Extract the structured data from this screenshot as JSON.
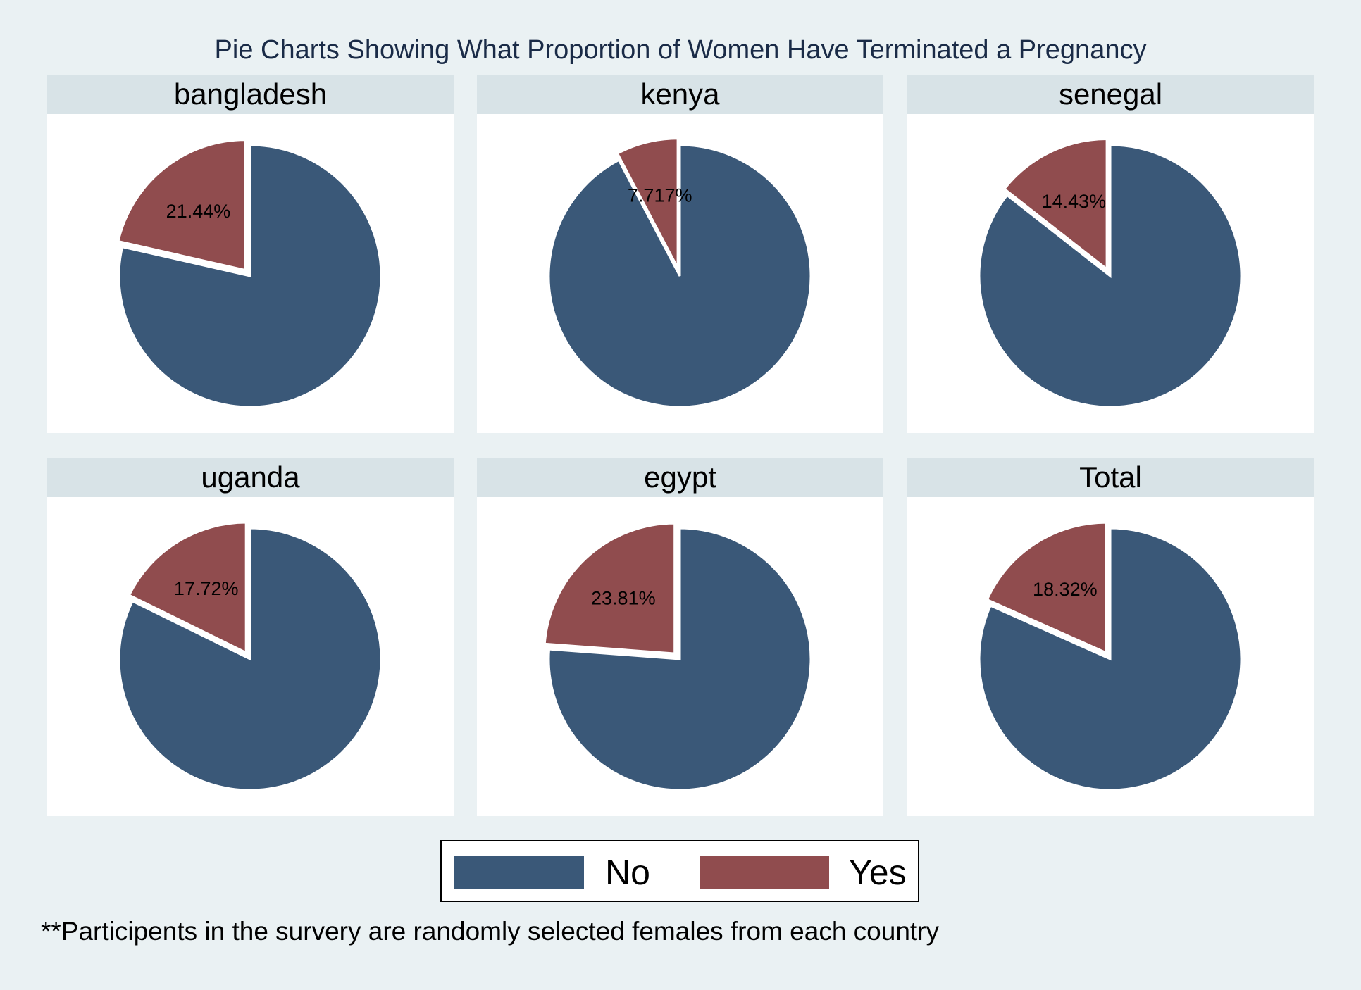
{
  "chart_data": {
    "type": "pie",
    "title": "Pie Charts Showing What Proportion of Women Have Terminated a Pregnancy",
    "categories": [
      "No",
      "Yes"
    ],
    "colors": {
      "No": "#3a5878",
      "Yes": "#904c4e"
    },
    "slice_label_shown": "Yes",
    "panels": [
      {
        "name": "bangladesh",
        "values": [
          78.56,
          21.44
        ],
        "label": "21.44%"
      },
      {
        "name": "kenya",
        "values": [
          92.283,
          7.717
        ],
        "label": "7.717%"
      },
      {
        "name": "senegal",
        "values": [
          85.57,
          14.43
        ],
        "label": "14.43%"
      },
      {
        "name": "uganda",
        "values": [
          82.28,
          17.72
        ],
        "label": "17.72%"
      },
      {
        "name": "egypt",
        "values": [
          76.19,
          23.81
        ],
        "label": "23.81%"
      },
      {
        "name": "Total",
        "values": [
          81.68,
          18.32
        ],
        "label": "18.32%"
      }
    ],
    "legend": {
      "placement": "bottom",
      "entries": [
        {
          "label": "No",
          "color": "#3a5878"
        },
        {
          "label": "Yes",
          "color": "#904c4e"
        }
      ]
    },
    "note": "**Participents in the survery are randomly selected females from each country"
  }
}
